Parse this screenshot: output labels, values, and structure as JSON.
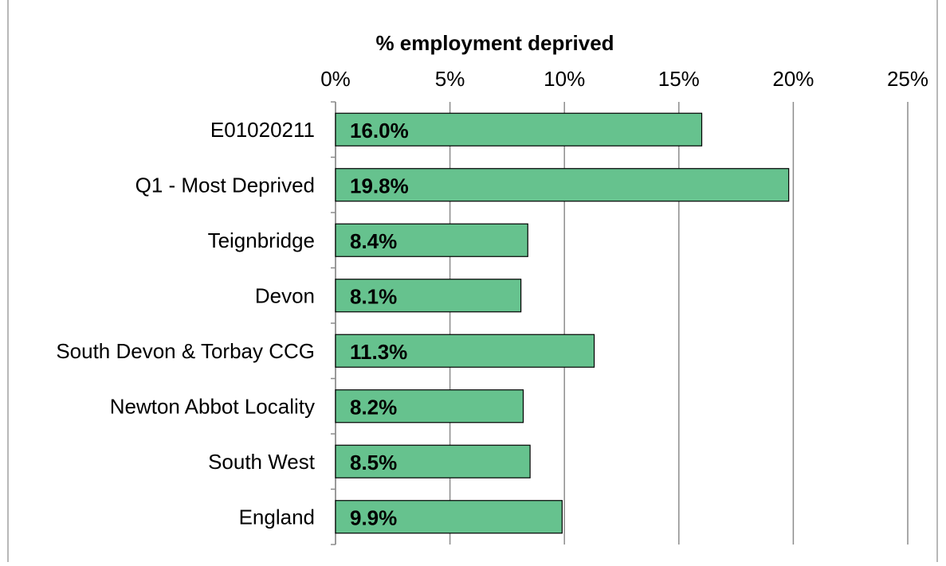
{
  "chart_data": {
    "type": "bar",
    "orientation": "horizontal",
    "title": "% employment deprived",
    "categories": [
      "E01020211",
      "Q1 - Most Deprived",
      "Teignbridge",
      "Devon",
      "South Devon & Torbay CCG",
      "Newton Abbot Locality",
      "South West",
      "England"
    ],
    "values": [
      16.0,
      19.8,
      8.4,
      8.1,
      11.3,
      8.2,
      8.5,
      9.9
    ],
    "data_labels": [
      "16.0%",
      "19.8%",
      "8.4%",
      "8.1%",
      "11.3%",
      "8.2%",
      "8.5%",
      "9.9%"
    ],
    "xlim": [
      0,
      25
    ],
    "xticks": [
      0,
      5,
      10,
      15,
      20,
      25
    ],
    "xtick_labels": [
      "0%",
      "5%",
      "10%",
      "15%",
      "20%",
      "25%"
    ],
    "x_axis_position": "top",
    "grid": true,
    "legend": false,
    "bar_color": "#66c28e",
    "bar_edge_color": "#000000",
    "gridline_color": "#8c8c8c"
  }
}
